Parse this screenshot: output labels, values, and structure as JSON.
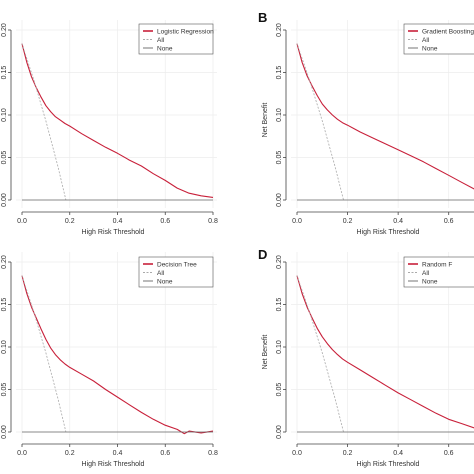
{
  "figure": {
    "background": "#ffffff"
  },
  "chart_data": [
    {
      "type": "line",
      "panel_label": "",
      "xlabel": "High Risk Threshold",
      "ylabel": "",
      "xlim": [
        0,
        0.8
      ],
      "ylim": [
        0,
        0.2
      ],
      "x_ticks": [
        "0.0",
        "0.2",
        "0.4",
        "0.6",
        "0.8"
      ],
      "y_ticks": [
        "0.00",
        "0.05",
        "0.10",
        "0.15",
        "0.20"
      ],
      "legend": {
        "position": "top-right",
        "entries": [
          "Logistic Regression",
          "All",
          "None"
        ]
      },
      "series": [
        {
          "name": "Logistic Regression",
          "color": "#c8203a",
          "x": [
            0,
            0.02,
            0.04,
            0.06,
            0.08,
            0.1,
            0.12,
            0.14,
            0.16,
            0.18,
            0.2,
            0.25,
            0.3,
            0.35,
            0.4,
            0.45,
            0.5,
            0.55,
            0.6,
            0.65,
            0.7,
            0.75,
            0.8
          ],
          "y": [
            0.184,
            0.162,
            0.145,
            0.132,
            0.121,
            0.111,
            0.104,
            0.098,
            0.094,
            0.09,
            0.087,
            0.078,
            0.07,
            0.062,
            0.055,
            0.047,
            0.04,
            0.031,
            0.023,
            0.014,
            0.008,
            0.005,
            0.003
          ]
        },
        {
          "name": "All",
          "color": "#aaaaaa",
          "dash": true,
          "x": [
            0,
            0.05,
            0.1,
            0.15,
            0.184
          ],
          "y": [
            0.184,
            0.141,
            0.093,
            0.04,
            0
          ]
        },
        {
          "name": "None",
          "color": "#666666",
          "x": [
            0,
            0.8
          ],
          "y": [
            0,
            0
          ]
        }
      ]
    },
    {
      "type": "line",
      "panel_label": "B",
      "xlabel": "High Risk Threshold",
      "ylabel": "Net Benefit",
      "xlim": [
        0,
        0.7
      ],
      "ylim": [
        0,
        0.2
      ],
      "x_ticks": [
        "0.0",
        "0.2",
        "0.4",
        "0.6"
      ],
      "y_ticks": [
        "0.00",
        "0.05",
        "0.10",
        "0.15",
        "0.20"
      ],
      "legend": {
        "position": "top-right",
        "entries": [
          "Gradient Boosting",
          "All",
          "None"
        ]
      },
      "series": [
        {
          "name": "Gradient Boosting",
          "color": "#c8203a",
          "x": [
            0,
            0.02,
            0.04,
            0.06,
            0.08,
            0.1,
            0.12,
            0.14,
            0.16,
            0.18,
            0.2,
            0.25,
            0.3,
            0.35,
            0.4,
            0.45,
            0.5,
            0.55,
            0.6,
            0.65,
            0.7,
            0.75
          ],
          "y": [
            0.184,
            0.162,
            0.146,
            0.134,
            0.123,
            0.113,
            0.106,
            0.1,
            0.095,
            0.091,
            0.088,
            0.08,
            0.073,
            0.066,
            0.059,
            0.052,
            0.045,
            0.037,
            0.029,
            0.021,
            0.013,
            0.004
          ]
        },
        {
          "name": "All",
          "color": "#aaaaaa",
          "dash": true,
          "x": [
            0,
            0.05,
            0.1,
            0.15,
            0.184
          ],
          "y": [
            0.184,
            0.141,
            0.093,
            0.04,
            0
          ]
        },
        {
          "name": "None",
          "color": "#666666",
          "x": [
            0,
            0.75
          ],
          "y": [
            0,
            0
          ]
        }
      ]
    },
    {
      "type": "line",
      "panel_label": "",
      "xlabel": "High Risk Threshold",
      "ylabel": "",
      "xlim": [
        0,
        0.8
      ],
      "ylim": [
        0,
        0.2
      ],
      "x_ticks": [
        "0.0",
        "0.2",
        "0.4",
        "0.6",
        "0.8"
      ],
      "y_ticks": [
        "0.00",
        "0.05",
        "0.10",
        "0.15",
        "0.20"
      ],
      "legend": {
        "position": "top-right",
        "entries": [
          "Decision Tree",
          "All",
          "None"
        ]
      },
      "series": [
        {
          "name": "Decision Tree",
          "color": "#c8203a",
          "x": [
            0,
            0.02,
            0.04,
            0.06,
            0.08,
            0.1,
            0.12,
            0.14,
            0.16,
            0.18,
            0.2,
            0.25,
            0.3,
            0.35,
            0.4,
            0.45,
            0.5,
            0.55,
            0.6,
            0.65,
            0.68,
            0.7,
            0.75,
            0.8
          ],
          "y": [
            0.184,
            0.163,
            0.147,
            0.134,
            0.121,
            0.109,
            0.099,
            0.091,
            0.085,
            0.08,
            0.076,
            0.068,
            0.06,
            0.05,
            0.041,
            0.032,
            0.023,
            0.015,
            0.008,
            0.003,
            -0.002,
            0.001,
            -0.001,
            0.001
          ]
        },
        {
          "name": "All",
          "color": "#aaaaaa",
          "dash": true,
          "x": [
            0,
            0.05,
            0.1,
            0.15,
            0.184
          ],
          "y": [
            0.184,
            0.141,
            0.093,
            0.04,
            0
          ]
        },
        {
          "name": "None",
          "color": "#666666",
          "x": [
            0,
            0.8
          ],
          "y": [
            0,
            0
          ]
        }
      ]
    },
    {
      "type": "line",
      "panel_label": "D",
      "xlabel": "High Risk Threshold",
      "ylabel": "Net Benefit",
      "xlim": [
        0,
        0.7
      ],
      "ylim": [
        0,
        0.2
      ],
      "x_ticks": [
        "0.0",
        "0.2",
        "0.4",
        "0.6"
      ],
      "y_ticks": [
        "0.00",
        "0.05",
        "0.10",
        "0.15",
        "0.20"
      ],
      "legend": {
        "position": "top-right",
        "entries": [
          "Random F",
          "All",
          "None"
        ]
      },
      "series": [
        {
          "name": "Random F",
          "color": "#c8203a",
          "x": [
            0,
            0.02,
            0.04,
            0.06,
            0.08,
            0.1,
            0.12,
            0.14,
            0.16,
            0.18,
            0.2,
            0.25,
            0.3,
            0.35,
            0.4,
            0.45,
            0.5,
            0.55,
            0.6,
            0.65,
            0.7,
            0.75
          ],
          "y": [
            0.184,
            0.163,
            0.147,
            0.134,
            0.122,
            0.112,
            0.104,
            0.097,
            0.091,
            0.086,
            0.082,
            0.073,
            0.064,
            0.055,
            0.046,
            0.038,
            0.03,
            0.022,
            0.015,
            0.01,
            0.005,
            0.001
          ]
        },
        {
          "name": "All",
          "color": "#aaaaaa",
          "dash": true,
          "x": [
            0,
            0.05,
            0.1,
            0.15,
            0.184
          ],
          "y": [
            0.184,
            0.141,
            0.093,
            0.04,
            0
          ]
        },
        {
          "name": "None",
          "color": "#666666",
          "x": [
            0,
            0.75
          ],
          "y": [
            0,
            0
          ]
        }
      ]
    }
  ]
}
